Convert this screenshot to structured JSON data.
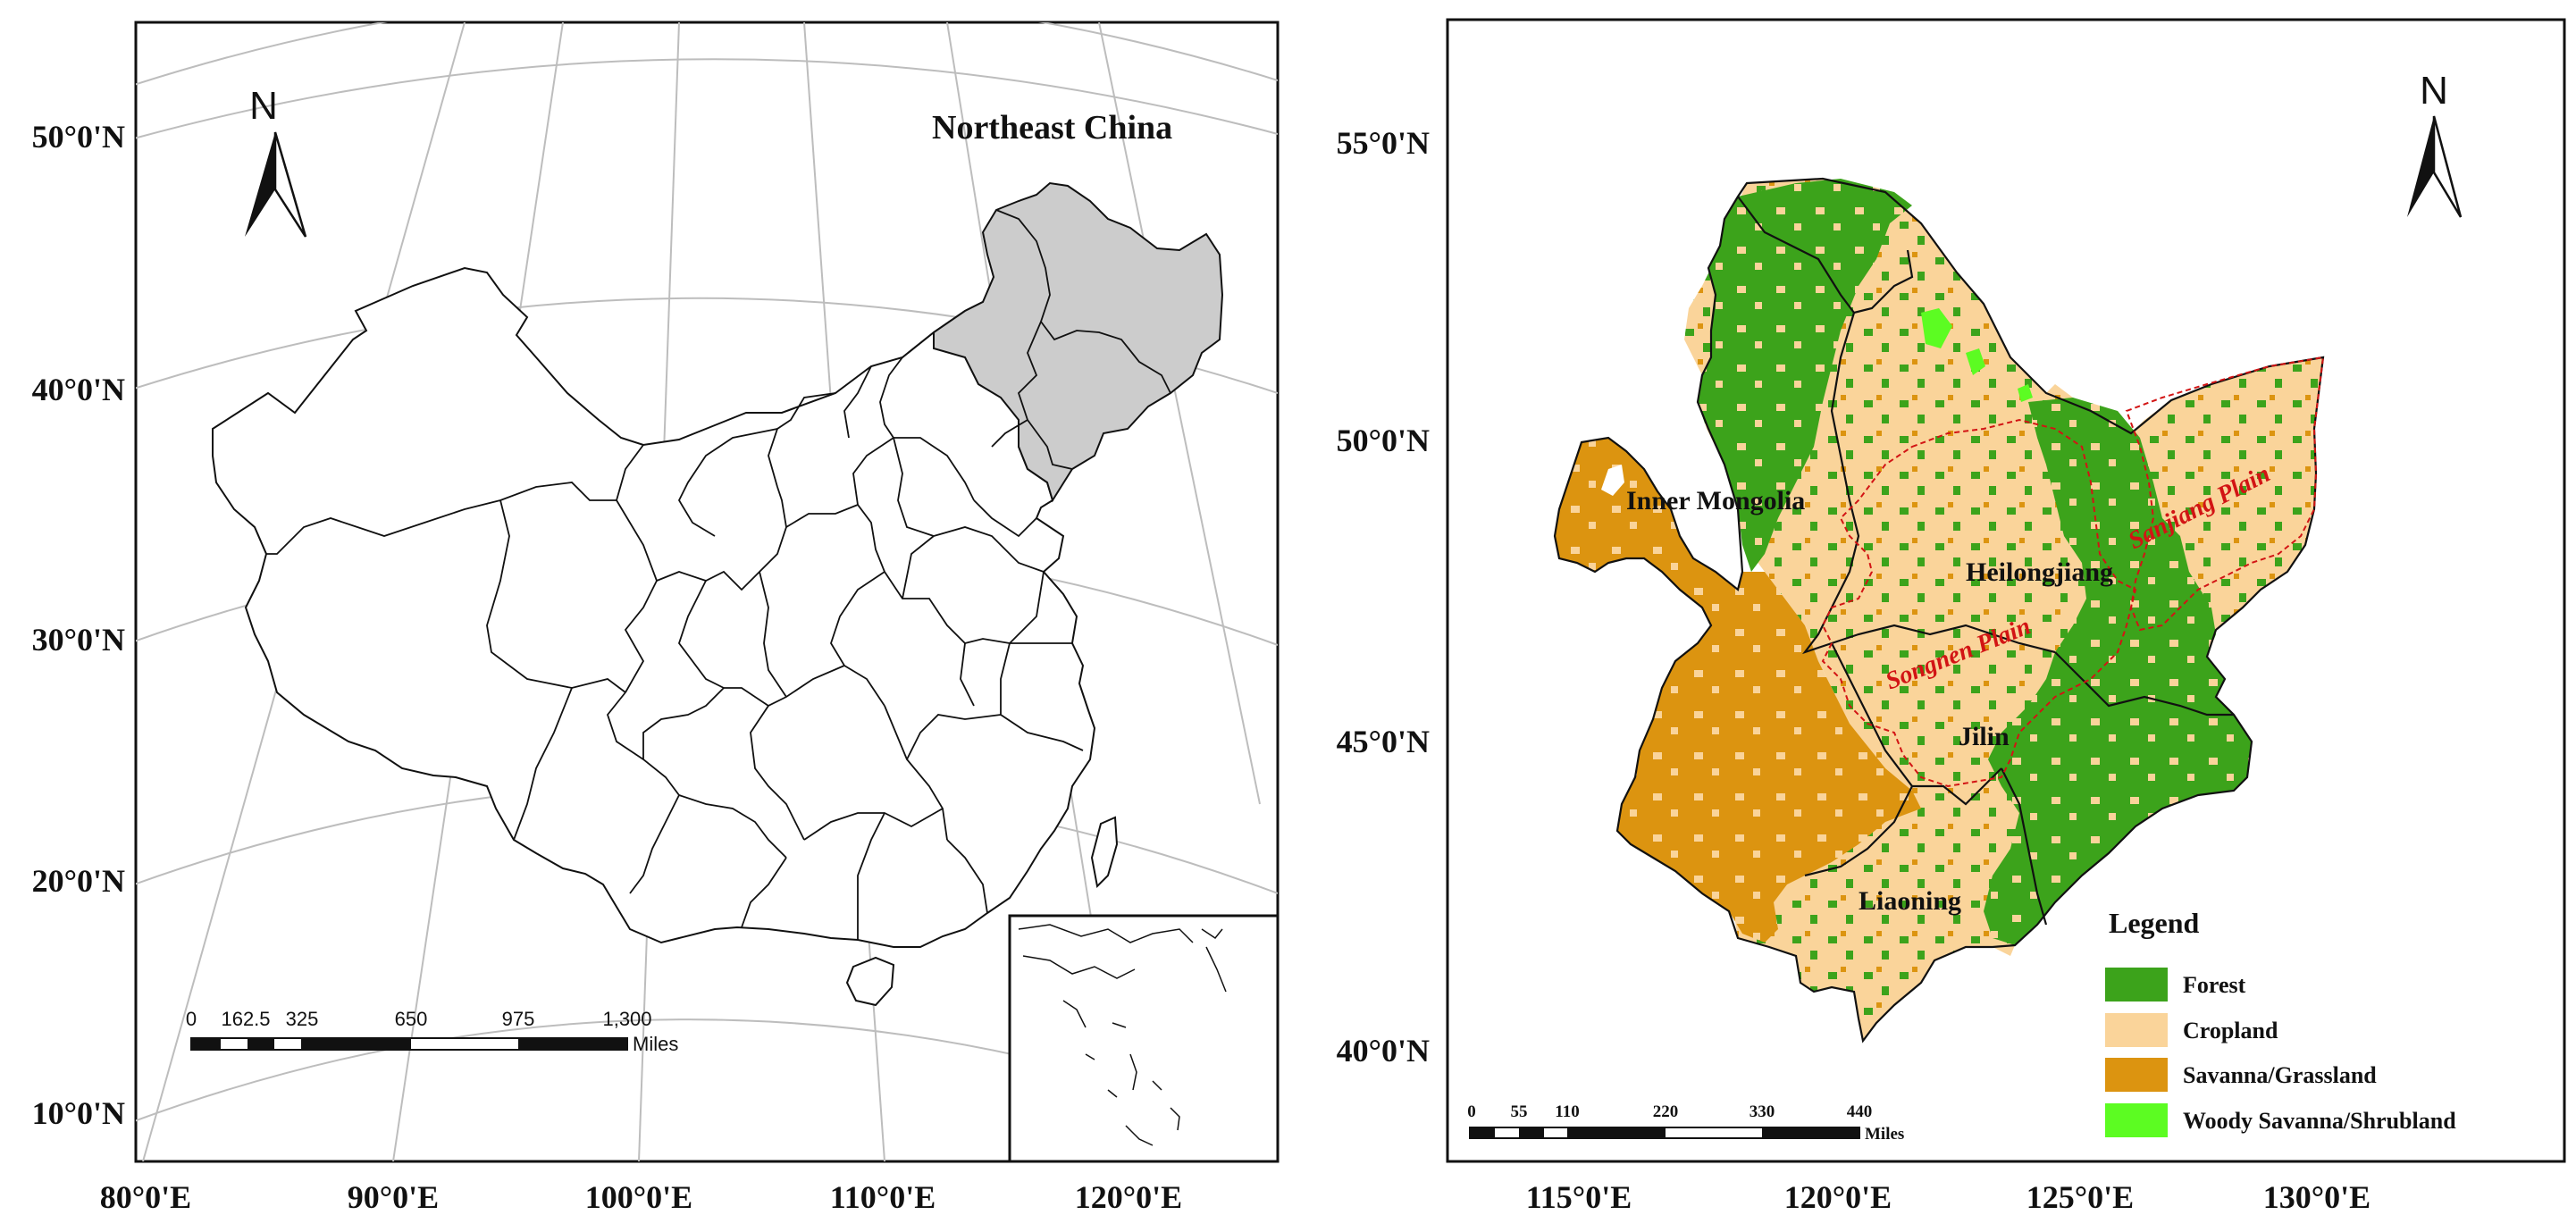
{
  "left_map": {
    "title": "Northeast China",
    "north_label": "N",
    "lat_labels": [
      "50°0'N",
      "40°0'N",
      "30°0'N",
      "20°0'N",
      "10°0'N"
    ],
    "lon_labels": [
      "80°0'E",
      "90°0'E",
      "100°0'E",
      "110°0'E",
      "120°0'E"
    ],
    "scale_bar": {
      "labels": [
        "0",
        "162.5",
        "325",
        "650",
        "975",
        "1,300"
      ],
      "unit": "Miles"
    }
  },
  "right_map": {
    "north_label": "N",
    "lat_labels": [
      "55°0'N",
      "50°0'N",
      "45°0'N",
      "40°0'N"
    ],
    "lon_labels": [
      "115°0'E",
      "120°0'E",
      "125°0'E",
      "130°0'E"
    ],
    "provinces": [
      "Inner Mongolia",
      "Heilongjiang",
      "Jilin",
      "Liaoning"
    ],
    "plains": [
      "Songnen Plain",
      "Sanjiang Plain"
    ],
    "scale_bar": {
      "labels": [
        "0",
        "55",
        "110",
        "220",
        "330",
        "440"
      ],
      "unit": "Miles"
    },
    "legend": {
      "title": "Legend",
      "items": [
        {
          "label": "Forest",
          "color": "#3ca31b"
        },
        {
          "label": "Cropland",
          "color": "#fad49a"
        },
        {
          "label": "Savanna/Grassland",
          "color": "#dc9410"
        },
        {
          "label": "Woody Savanna/Shrubland",
          "color": "#5cfc22"
        }
      ]
    }
  },
  "colors": {
    "northeast_highlight": "#cccccc",
    "plain_boundary": "#d21414",
    "graticule": "#bdbdbd"
  }
}
